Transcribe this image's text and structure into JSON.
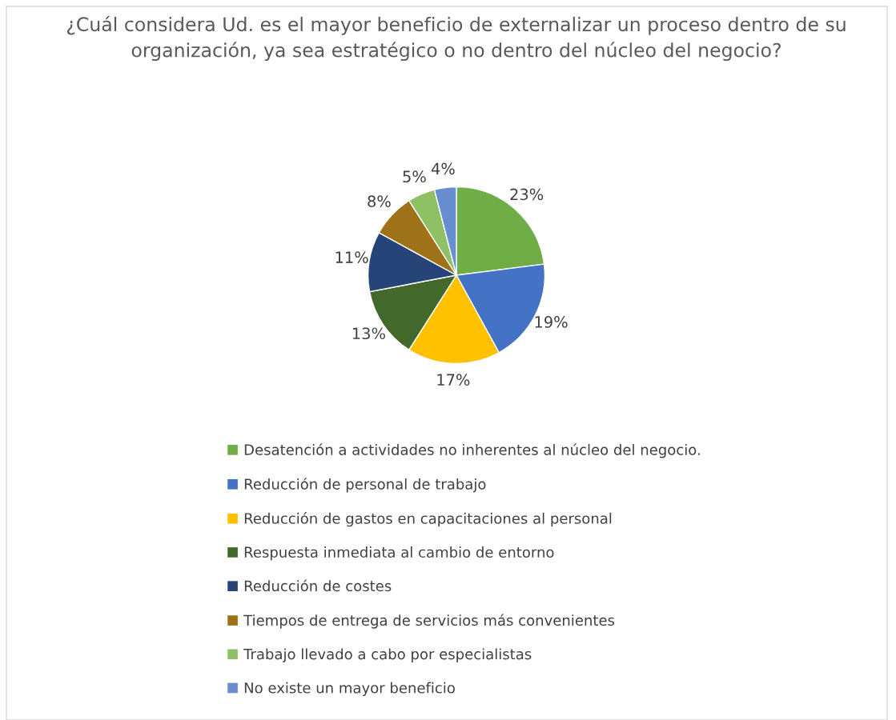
{
  "chart_data": {
    "type": "pie",
    "title": "¿Cuál considera Ud. es el mayor beneficio de externalizar un proceso dentro de su organización, ya sea estratégico o no dentro del núcleo del negocio?",
    "categories": [
      "Desatención a actividades no inherentes al núcleo del negocio.",
      "Reducción de personal de trabajo",
      "Reducción de gastos en capacitaciones al personal",
      "Respuesta inmediata al cambio de entorno",
      "Reducción de costes",
      "Tiempos de entrega de servicios más convenientes",
      "Trabajo llevado a cabo por especialistas",
      "No existe un mayor beneficio"
    ],
    "values": [
      23,
      19,
      17,
      13,
      11,
      8,
      5,
      4
    ],
    "value_labels": [
      "23%",
      "19%",
      "17%",
      "13%",
      "11%",
      "8%",
      "5%",
      "4%"
    ],
    "colors": [
      "#70ad47",
      "#4472c4",
      "#ffc000",
      "#43682b",
      "#264478",
      "#9e7218",
      "#8fc065",
      "#698ed0"
    ],
    "legend": "bottom"
  }
}
